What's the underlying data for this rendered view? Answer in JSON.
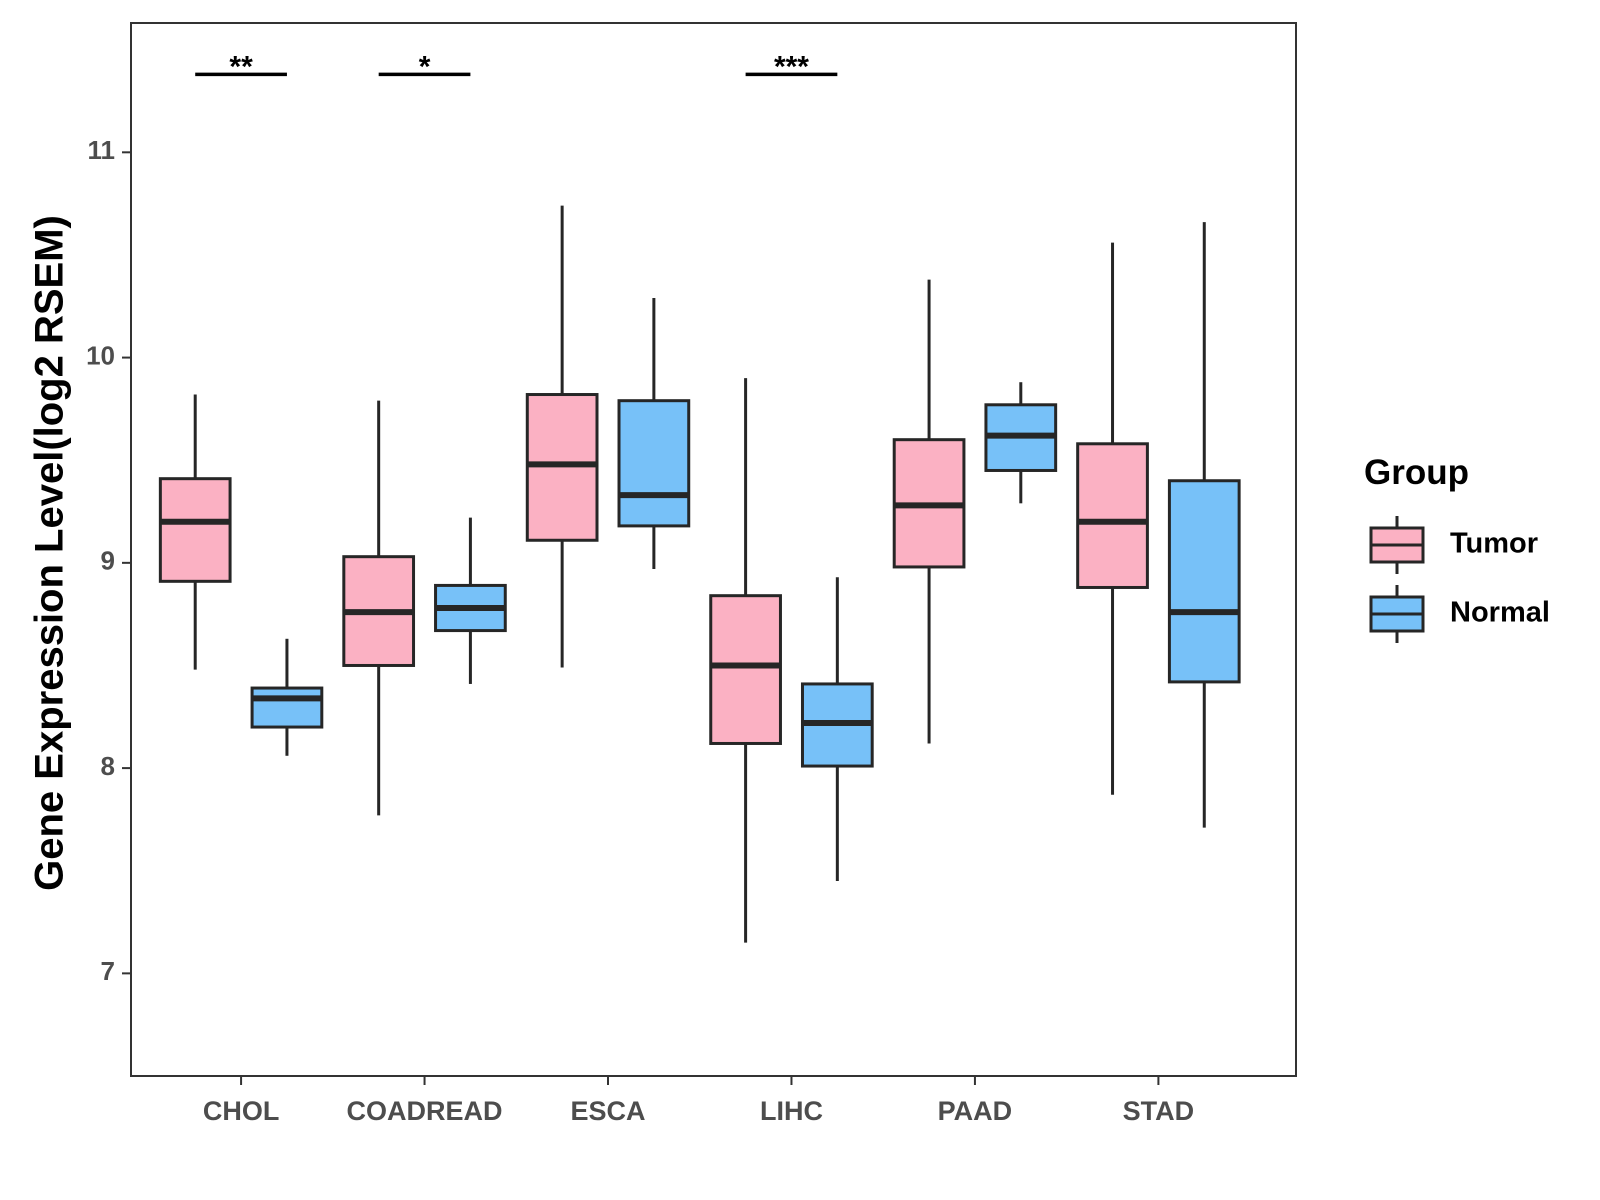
{
  "chart_data": {
    "type": "boxplot",
    "title": "",
    "xlabel": "",
    "ylabel": "Gene Expression Level(log2 RSEM)",
    "ylim": [
      6.5,
      11.63
    ],
    "yticks": [
      7,
      8,
      9,
      10,
      11
    ],
    "grid": false,
    "categories": [
      "CHOL",
      "COADREAD",
      "ESCA",
      "LIHC",
      "PAAD",
      "STAD"
    ],
    "legend": {
      "title": "Group",
      "position": "right",
      "entries": [
        {
          "name": "Tumor",
          "color": "#FBB1C3"
        },
        {
          "name": "Normal",
          "color": "#77C1F8"
        }
      ]
    },
    "series": [
      {
        "name": "Tumor",
        "color": "#FBB1C3",
        "boxes": [
          {
            "category": "CHOL",
            "whisker_low": 8.48,
            "q1": 8.91,
            "median": 9.2,
            "q3": 9.41,
            "whisker_high": 9.82
          },
          {
            "category": "COADREAD",
            "whisker_low": 7.77,
            "q1": 8.5,
            "median": 8.76,
            "q3": 9.03,
            "whisker_high": 9.79
          },
          {
            "category": "ESCA",
            "whisker_low": 8.49,
            "q1": 9.11,
            "median": 9.48,
            "q3": 9.82,
            "whisker_high": 10.74
          },
          {
            "category": "LIHC",
            "whisker_low": 7.15,
            "q1": 8.12,
            "median": 8.5,
            "q3": 8.84,
            "whisker_high": 9.9
          },
          {
            "category": "PAAD",
            "whisker_low": 8.12,
            "q1": 8.98,
            "median": 9.28,
            "q3": 9.6,
            "whisker_high": 10.38
          },
          {
            "category": "STAD",
            "whisker_low": 7.87,
            "q1": 8.88,
            "median": 9.2,
            "q3": 9.58,
            "whisker_high": 10.56
          }
        ]
      },
      {
        "name": "Normal",
        "color": "#77C1F8",
        "boxes": [
          {
            "category": "CHOL",
            "whisker_low": 8.06,
            "q1": 8.2,
            "median": 8.34,
            "q3": 8.39,
            "whisker_high": 8.63
          },
          {
            "category": "COADREAD",
            "whisker_low": 8.41,
            "q1": 8.67,
            "median": 8.78,
            "q3": 8.89,
            "whisker_high": 9.22
          },
          {
            "category": "ESCA",
            "whisker_low": 8.97,
            "q1": 9.18,
            "median": 9.33,
            "q3": 9.79,
            "whisker_high": 10.29
          },
          {
            "category": "LIHC",
            "whisker_low": 7.45,
            "q1": 8.01,
            "median": 8.22,
            "q3": 8.41,
            "whisker_high": 8.93
          },
          {
            "category": "PAAD",
            "whisker_low": 9.29,
            "q1": 9.45,
            "median": 9.62,
            "q3": 9.77,
            "whisker_high": 9.88
          },
          {
            "category": "STAD",
            "whisker_low": 7.71,
            "q1": 8.42,
            "median": 8.76,
            "q3": 9.4,
            "whisker_high": 10.66
          }
        ]
      }
    ],
    "significance": [
      {
        "category": "CHOL",
        "label": "**",
        "y": 11.38
      },
      {
        "category": "COADREAD",
        "label": "*",
        "y": 11.38
      },
      {
        "category": "LIHC",
        "label": "***",
        "y": 11.38
      }
    ]
  }
}
